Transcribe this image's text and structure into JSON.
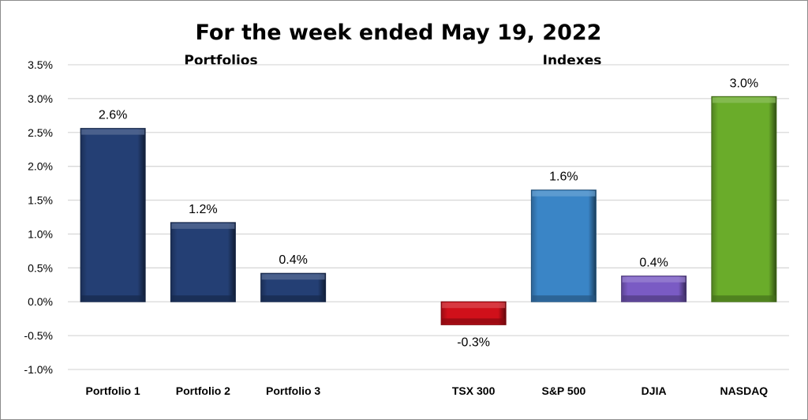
{
  "chart_data": {
    "type": "bar",
    "title": "For the week ended May 19, 2022",
    "groups": [
      {
        "label": "Portfolios",
        "categories": [
          "Portfolio 1",
          "Portfolio 2",
          "Portfolio 3"
        ]
      },
      {
        "label": "Indexes",
        "categories": [
          "TSX 300",
          "S&P 500",
          "DJIA",
          "NASDAQ"
        ]
      }
    ],
    "categories": [
      "Portfolio 1",
      "Portfolio 2",
      "Portfolio 3",
      "",
      "TSX 300",
      "S&P 500",
      "DJIA",
      "NASDAQ"
    ],
    "values": [
      2.56,
      1.17,
      0.42,
      null,
      -0.34,
      1.65,
      0.38,
      3.03
    ],
    "data_labels": [
      "2.6%",
      "1.2%",
      "0.4%",
      "",
      "-0.3%",
      "1.6%",
      "0.4%",
      "3.0%"
    ],
    "colors": [
      "#243f74",
      "#243f74",
      "#243f74",
      "",
      "#d0101a",
      "#3a85c6",
      "#7a5bc4",
      "#6aac2a"
    ],
    "yticks": [
      "-1.0%",
      "-0.5%",
      "0.0%",
      "0.5%",
      "1.0%",
      "1.5%",
      "2.0%",
      "2.5%",
      "3.0%",
      "3.5%"
    ],
    "ytick_values": [
      -1.0,
      -0.5,
      0.0,
      0.5,
      1.0,
      1.5,
      2.0,
      2.5,
      3.0,
      3.5
    ],
    "ylim": [
      -1.0,
      3.5
    ],
    "xlabel": "",
    "ylabel": "",
    "grid": true,
    "legend": "none"
  }
}
